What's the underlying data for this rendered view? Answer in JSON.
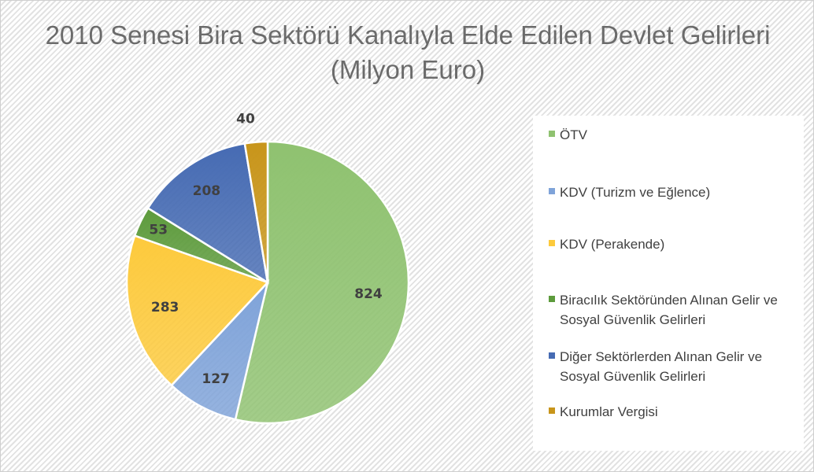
{
  "chart_data": {
    "type": "pie",
    "title": "2010 Senesi Bira Sektörü Kanalıyla Elde Edilen Devlet Gelirleri  (Milyon Euro)",
    "legend_position": "right",
    "slices": [
      {
        "label": "ÖTV",
        "value": 824,
        "color": "#8fc270"
      },
      {
        "label": "KDV (Turizm ve Eğlence)",
        "value": 127,
        "color": "#7fa3d9"
      },
      {
        "label": "KDV (Perakende)",
        "value": 283,
        "color": "#fdca3c"
      },
      {
        "label": "Biracılık Sektöründen Alınan Gelir ve Sosyal Güvenlik Gelirleri",
        "value": 53,
        "color": "#5d9b3c"
      },
      {
        "label": "Diğer Sektörlerden Alınan Gelir ve Sosyal Güvenlik Gelirleri",
        "value": 208,
        "color": "#466bb3"
      },
      {
        "label": "Kurumlar Vergisi",
        "value": 40,
        "color": "#c8951a"
      }
    ]
  }
}
